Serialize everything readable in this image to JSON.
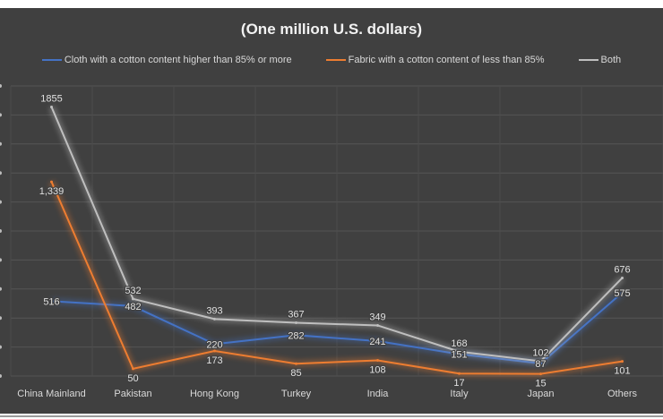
{
  "chart_data": {
    "type": "line",
    "title": "(One million U.S. dollars)",
    "categories": [
      "China Mainland",
      "Pakistan",
      "Hong Kong",
      "Turkey",
      "India",
      "Italy",
      "Japan",
      "Others"
    ],
    "series": [
      {
        "name": "Cloth with a cotton content higher than 85% or more",
        "color": "#4472c4",
        "values": [
          516,
          482,
          220,
          282,
          241,
          151,
          87,
          575
        ],
        "labels": [
          "516",
          "482",
          "220",
          "282",
          "241",
          "151",
          "87",
          "575"
        ]
      },
      {
        "name": "Fabric with a cotton content of less than 85%",
        "color": "#ed7d31",
        "values": [
          1339,
          50,
          173,
          85,
          108,
          17,
          15,
          101
        ],
        "labels": [
          "1,339",
          "50",
          "173",
          "85",
          "108",
          "17",
          "15",
          "101"
        ]
      },
      {
        "name": "Both",
        "color": "#bfbfbf",
        "values": [
          1855,
          532,
          393,
          367,
          349,
          168,
          102,
          676
        ],
        "labels": [
          "1855",
          "532",
          "393",
          "367",
          "349",
          "168",
          "102",
          "676"
        ]
      }
    ],
    "ylim": [
      0,
      2000
    ],
    "ytick_step": 200,
    "grid": true,
    "legend_position": "top"
  }
}
